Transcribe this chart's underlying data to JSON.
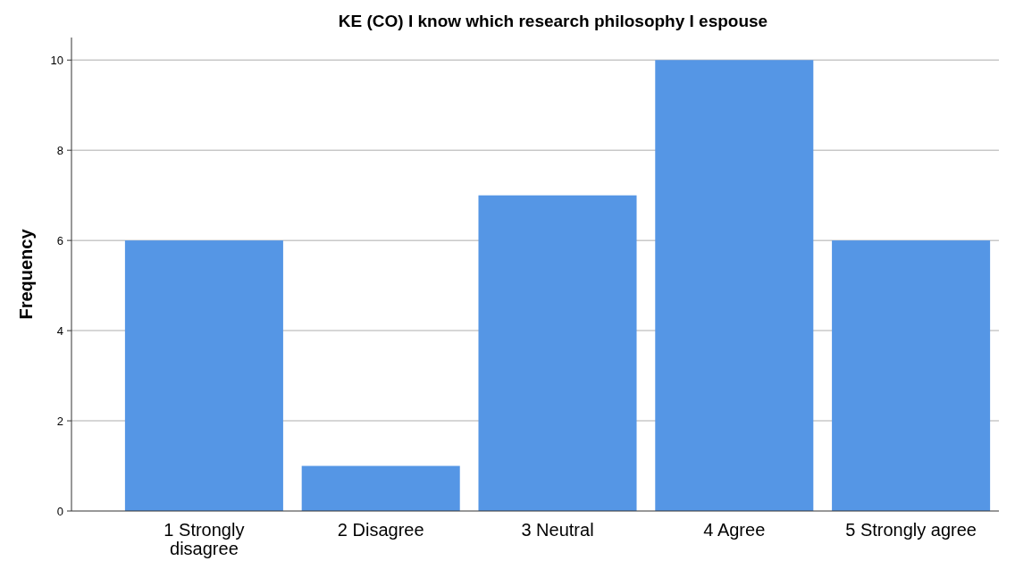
{
  "chart_data": {
    "type": "bar",
    "title": "KE (CO) I know which research philosophy I espouse",
    "ylabel": "Frequency",
    "categories": [
      "1 Strongly disagree",
      "2 Disagree",
      "3 Neutral",
      "4 Agree",
      "5 Strongly agree"
    ],
    "values": [
      6,
      1,
      7,
      10,
      6
    ],
    "color": "#5596e5",
    "ylim": [
      0,
      10.5
    ],
    "yticks": [
      0,
      2,
      4,
      6,
      8,
      10
    ],
    "grid": "y"
  }
}
